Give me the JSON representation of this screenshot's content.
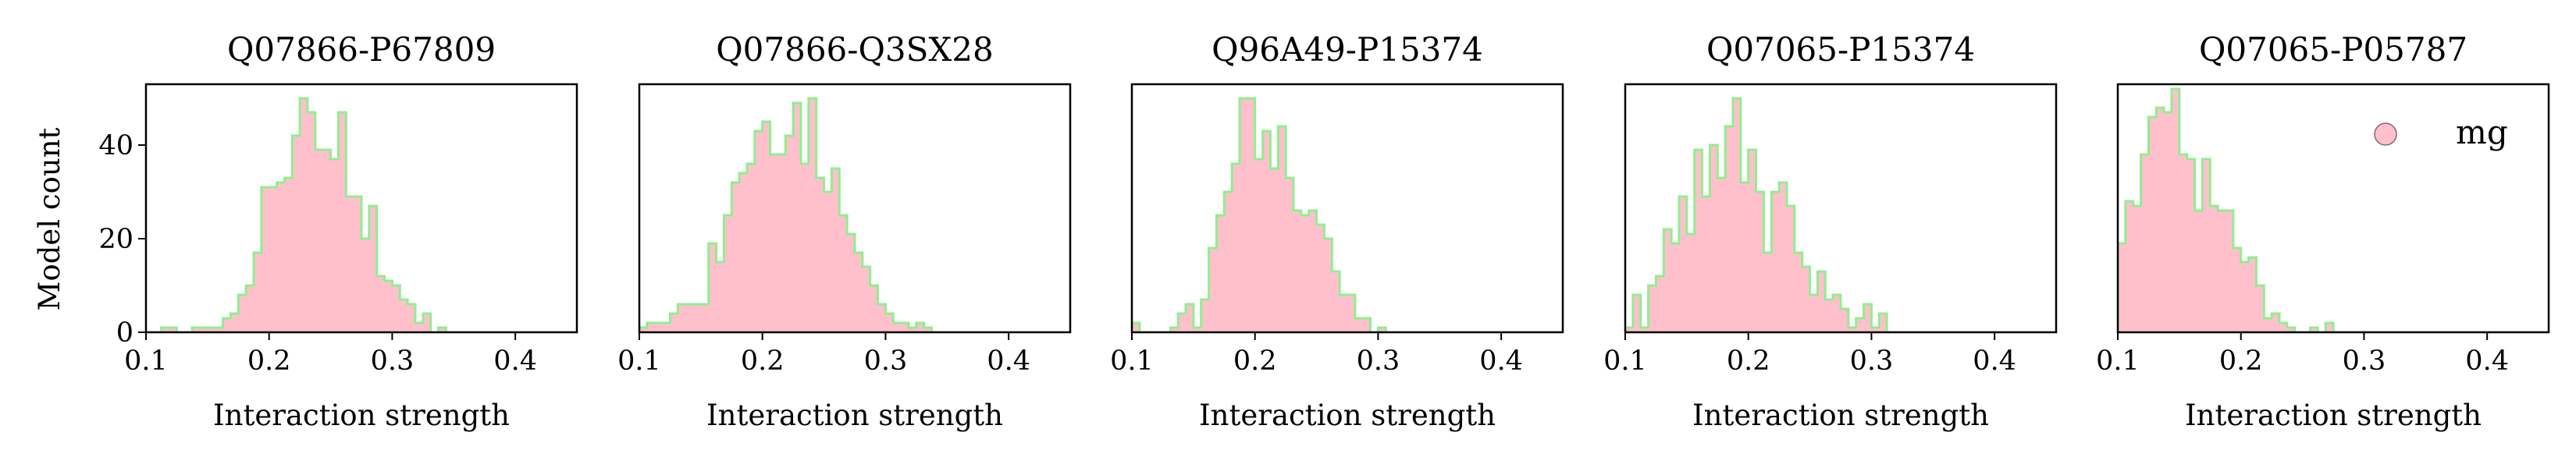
{
  "colors": {
    "fill": "#ffc0cb",
    "edge": "#90ee90",
    "axis": "#000000"
  },
  "shared": {
    "xlabel": "Interaction strength",
    "ylabel": "Model count",
    "x_ticks": [
      "0.1",
      "0.2",
      "0.3",
      "0.4"
    ],
    "y_ticks": [
      "0",
      "20",
      "40"
    ],
    "legend": {
      "label": "mg",
      "placement": "upper right of last panel"
    }
  },
  "chart_data": [
    {
      "type": "histogram",
      "title": "Q07866-P67809",
      "xlim": [
        0.1,
        0.45
      ],
      "ylim": [
        0,
        53
      ],
      "bin_start": 0.1,
      "bin_width": 0.00625,
      "counts": [
        0,
        0,
        1,
        1,
        0,
        0,
        1,
        1,
        1,
        1,
        3,
        4,
        8,
        10,
        17,
        31,
        31,
        32,
        33,
        42,
        50,
        47,
        39,
        39,
        37,
        47,
        29,
        29,
        20,
        27,
        12,
        11,
        10,
        7,
        6,
        2,
        4,
        0,
        1,
        0,
        0,
        0,
        0,
        0,
        0,
        0,
        0,
        0,
        0,
        0,
        0,
        0,
        0,
        0,
        0,
        0
      ]
    },
    {
      "type": "histogram",
      "title": "Q07866-Q3SX28",
      "xlim": [
        0.1,
        0.45
      ],
      "ylim": [
        0,
        53
      ],
      "bin_start": 0.1,
      "bin_width": 0.00625,
      "counts": [
        1,
        2,
        2,
        2,
        4,
        6,
        6,
        6,
        6,
        19,
        15,
        25,
        32,
        34,
        36,
        43,
        45,
        38,
        38,
        42,
        49,
        36,
        50,
        33,
        30,
        35,
        25,
        21,
        17,
        14,
        10,
        6,
        4,
        2,
        2,
        1,
        2,
        1,
        0,
        0,
        0,
        0,
        0,
        0,
        0,
        0,
        0,
        0,
        0,
        0,
        0,
        0,
        0,
        0,
        0,
        0
      ]
    },
    {
      "type": "histogram",
      "title": "Q96A49-P15374",
      "xlim": [
        0.1,
        0.45
      ],
      "ylim": [
        0,
        53
      ],
      "bin_start": 0.1,
      "bin_width": 0.00625,
      "counts": [
        2,
        0,
        0,
        0,
        0,
        1,
        4,
        6,
        1,
        7,
        18,
        25,
        30,
        36,
        50,
        50,
        37,
        43,
        35,
        44,
        33,
        26,
        25,
        26,
        23,
        20,
        13,
        8,
        8,
        3,
        3,
        0,
        1,
        0,
        0,
        0,
        0,
        0,
        0,
        0,
        0,
        0,
        0,
        0,
        0,
        0,
        0,
        0,
        0,
        0,
        0,
        0,
        0,
        0,
        0,
        0
      ]
    },
    {
      "type": "histogram",
      "title": "Q07065-P15374",
      "xlim": [
        0.1,
        0.45
      ],
      "ylim": [
        0,
        53
      ],
      "bin_start": 0.1,
      "bin_width": 0.00625,
      "counts": [
        1,
        8,
        1,
        10,
        12,
        22,
        19,
        29,
        21,
        39,
        29,
        40,
        33,
        44,
        50,
        32,
        39,
        30,
        17,
        30,
        32,
        27,
        17,
        14,
        8,
        13,
        7,
        8,
        5,
        1,
        3,
        6,
        1,
        4,
        0,
        0,
        0,
        0,
        0,
        0,
        0,
        0,
        0,
        0,
        0,
        0,
        0,
        0,
        0,
        0,
        0,
        0,
        0,
        0,
        0,
        0
      ]
    },
    {
      "type": "histogram",
      "title": "Q07065-P05787",
      "xlim": [
        0.1,
        0.45
      ],
      "ylim": [
        0,
        53
      ],
      "bin_start": 0.1,
      "bin_width": 0.00625,
      "counts": [
        19,
        28,
        27,
        38,
        46,
        48,
        47,
        52,
        38,
        37,
        26,
        37,
        27,
        26,
        26,
        18,
        15,
        16,
        10,
        3,
        4,
        2,
        1,
        0,
        0,
        1,
        0,
        2,
        0,
        0,
        0,
        0,
        0,
        0,
        0,
        0,
        0,
        0,
        0,
        0,
        0,
        0,
        0,
        0,
        0,
        0,
        0,
        0,
        0,
        0,
        0,
        0,
        0,
        0,
        0,
        0
      ]
    }
  ]
}
